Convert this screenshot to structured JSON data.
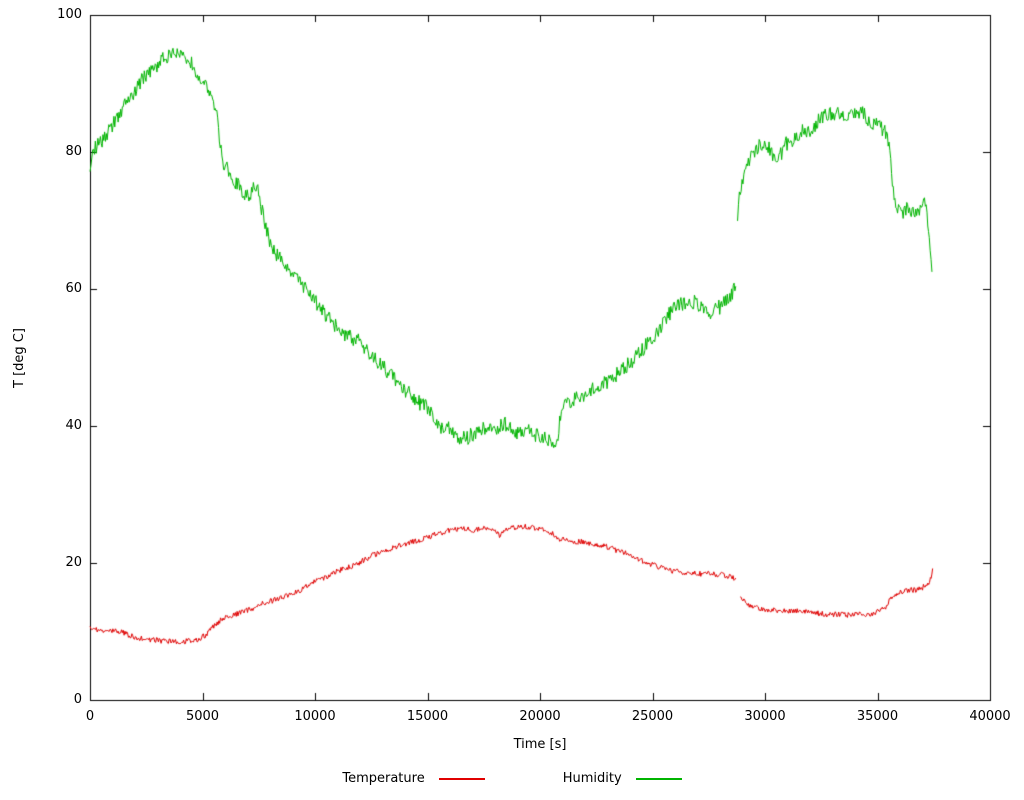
{
  "colors": {
    "background": "#ffffff",
    "axis": "#000000"
  },
  "chart_data": {
    "type": "line",
    "title": "",
    "xlabel": "Time [s]",
    "ylabel": "T [deg C]",
    "xlim": [
      0,
      40000
    ],
    "ylim": [
      0,
      100
    ],
    "xticks": [
      0,
      5000,
      10000,
      15000,
      20000,
      25000,
      30000,
      35000,
      40000
    ],
    "yticks": [
      0,
      20,
      40,
      60,
      80,
      100
    ],
    "grid": false,
    "legend_position": "bottom-center",
    "sample_step": 40,
    "series": [
      {
        "name": "Temperature",
        "color": "#e00000",
        "noise": 0.4,
        "segments": [
          [
            [
              0,
              10.5
            ],
            [
              400,
              10.2
            ],
            [
              900,
              10.1
            ],
            [
              1400,
              9.9
            ],
            [
              1900,
              9.3
            ],
            [
              2400,
              8.9
            ],
            [
              3000,
              8.7
            ],
            [
              3600,
              8.6
            ],
            [
              4200,
              8.6
            ],
            [
              4800,
              8.8
            ],
            [
              5200,
              9.6
            ],
            [
              5500,
              10.8
            ],
            [
              5800,
              11.6
            ],
            [
              6100,
              12.1
            ],
            [
              6500,
              12.6
            ],
            [
              7000,
              13.1
            ],
            [
              7400,
              13.5
            ],
            [
              7700,
              14.1
            ],
            [
              8100,
              14.5
            ],
            [
              8600,
              15.0
            ],
            [
              9100,
              15.6
            ],
            [
              9600,
              16.5
            ],
            [
              10000,
              17.3
            ],
            [
              10500,
              18.0
            ],
            [
              11000,
              18.8
            ],
            [
              11500,
              19.4
            ],
            [
              12000,
              20.1
            ],
            [
              12500,
              21.0
            ],
            [
              13000,
              21.8
            ],
            [
              13500,
              22.2
            ],
            [
              14000,
              22.8
            ],
            [
              14500,
              23.2
            ],
            [
              15000,
              23.8
            ],
            [
              15500,
              24.3
            ],
            [
              16000,
              24.8
            ],
            [
              16500,
              25.0
            ],
            [
              17000,
              24.8
            ],
            [
              17500,
              25.1
            ],
            [
              18000,
              25.0
            ],
            [
              18200,
              23.8
            ],
            [
              18500,
              25.0
            ],
            [
              19000,
              25.2
            ],
            [
              19500,
              25.3
            ],
            [
              20000,
              25.0
            ],
            [
              20400,
              24.6
            ],
            [
              20800,
              23.6
            ],
            [
              21300,
              23.2
            ],
            [
              21800,
              23.1
            ],
            [
              22300,
              22.9
            ],
            [
              22800,
              22.5
            ],
            [
              23300,
              22.0
            ],
            [
              23800,
              21.4
            ],
            [
              24300,
              20.7
            ],
            [
              24800,
              20.0
            ],
            [
              25300,
              19.4
            ],
            [
              25800,
              18.9
            ],
            [
              26300,
              18.6
            ],
            [
              26800,
              18.5
            ],
            [
              27300,
              18.4
            ],
            [
              27800,
              18.4
            ],
            [
              28300,
              18.1
            ],
            [
              28700,
              17.8
            ]
          ],
          [
            [
              28900,
              14.7
            ],
            [
              29300,
              13.9
            ],
            [
              29700,
              13.4
            ],
            [
              30200,
              13.2
            ],
            [
              30700,
              13.1
            ],
            [
              31200,
              13.0
            ],
            [
              31700,
              13.0
            ],
            [
              32200,
              12.7
            ],
            [
              32700,
              12.5
            ],
            [
              33200,
              12.5
            ],
            [
              33700,
              12.4
            ],
            [
              34200,
              12.5
            ],
            [
              34700,
              12.6
            ],
            [
              35100,
              12.9
            ],
            [
              35400,
              13.6
            ],
            [
              35600,
              15.0
            ],
            [
              35900,
              15.7
            ],
            [
              36300,
              16.0
            ],
            [
              36700,
              16.1
            ],
            [
              37000,
              16.4
            ],
            [
              37200,
              16.9
            ],
            [
              37350,
              17.6
            ],
            [
              37450,
              19.2
            ]
          ]
        ]
      },
      {
        "name": "Humidity",
        "color": "#00b400",
        "noise": 1.1,
        "segments": [
          [
            [
              0,
              78
            ],
            [
              200,
              80.5
            ],
            [
              500,
              81.5
            ],
            [
              800,
              83
            ],
            [
              1100,
              84.5
            ],
            [
              1400,
              86
            ],
            [
              1700,
              87.5
            ],
            [
              2000,
              89
            ],
            [
              2300,
              90.5
            ],
            [
              2600,
              91.5
            ],
            [
              2900,
              92.5
            ],
            [
              3200,
              93.5
            ],
            [
              3500,
              94.2
            ],
            [
              3800,
              94.5
            ],
            [
              4100,
              94.3
            ],
            [
              4400,
              93.5
            ],
            [
              4700,
              92
            ],
            [
              5000,
              90.5
            ],
            [
              5300,
              89
            ],
            [
              5600,
              86.5
            ],
            [
              5750,
              82
            ],
            [
              5900,
              78.5
            ],
            [
              6200,
              77
            ],
            [
              6500,
              75.5
            ],
            [
              6800,
              74
            ],
            [
              7100,
              73.5
            ],
            [
              7300,
              74.8
            ],
            [
              7500,
              74
            ],
            [
              7700,
              70.5
            ],
            [
              7900,
              68
            ],
            [
              8100,
              66
            ],
            [
              8400,
              64.5
            ],
            [
              8700,
              63.5
            ],
            [
              9000,
              62.5
            ],
            [
              9300,
              61
            ],
            [
              9600,
              60
            ],
            [
              9900,
              58.5
            ],
            [
              10200,
              57.5
            ],
            [
              10500,
              56
            ],
            [
              10800,
              55
            ],
            [
              11100,
              54
            ],
            [
              11400,
              53.2
            ],
            [
              11700,
              52.8
            ],
            [
              12000,
              52.2
            ],
            [
              12300,
              51
            ],
            [
              12600,
              50
            ],
            [
              12900,
              49
            ],
            [
              13200,
              48
            ],
            [
              13500,
              47
            ],
            [
              13800,
              46
            ],
            [
              14100,
              45
            ],
            [
              14400,
              44
            ],
            [
              14700,
              43.2
            ],
            [
              15000,
              42.8
            ],
            [
              15300,
              41.5
            ],
            [
              15600,
              39.8
            ],
            [
              15900,
              40.3
            ],
            [
              16200,
              38.8
            ],
            [
              16500,
              38
            ],
            [
              16800,
              38.4
            ],
            [
              17100,
              38.9
            ],
            [
              17400,
              39.4
            ],
            [
              17700,
              39.9
            ],
            [
              18000,
              39.4
            ],
            [
              18300,
              40.4
            ],
            [
              18600,
              40.1
            ],
            [
              18900,
              39.2
            ],
            [
              19200,
              38.6
            ],
            [
              19500,
              39.4
            ],
            [
              19800,
              38.6
            ],
            [
              20100,
              38.7
            ],
            [
              20400,
              37.8
            ],
            [
              20650,
              36.9
            ],
            [
              20800,
              38.5
            ],
            [
              20950,
              42.3
            ],
            [
              21300,
              43.4
            ],
            [
              21700,
              44.2
            ],
            [
              22100,
              44.9
            ],
            [
              22500,
              45.5
            ],
            [
              22900,
              46.2
            ],
            [
              23300,
              47.3
            ],
            [
              23700,
              48.2
            ],
            [
              24100,
              49.6
            ],
            [
              24500,
              51
            ],
            [
              24900,
              52.6
            ],
            [
              25300,
              54.2
            ],
            [
              25700,
              56.2
            ],
            [
              26000,
              57.4
            ],
            [
              26300,
              57.9
            ],
            [
              26600,
              58.4
            ],
            [
              26900,
              58
            ],
            [
              27200,
              57.4
            ],
            [
              27500,
              56.6
            ],
            [
              27800,
              57
            ],
            [
              28100,
              57.6
            ],
            [
              28400,
              58.6
            ],
            [
              28700,
              60.4
            ]
          ],
          [
            [
              28780,
              71
            ],
            [
              28900,
              74.5
            ],
            [
              29100,
              76.5
            ],
            [
              29300,
              78.5
            ],
            [
              29500,
              80
            ],
            [
              29700,
              80.8
            ],
            [
              29900,
              81.3
            ],
            [
              30100,
              81.2
            ],
            [
              30300,
              80
            ],
            [
              30500,
              79
            ],
            [
              30700,
              79.6
            ],
            [
              30900,
              81
            ],
            [
              31100,
              81.8
            ],
            [
              31400,
              82
            ],
            [
              31700,
              83.2
            ],
            [
              32000,
              83
            ],
            [
              32300,
              84.2
            ],
            [
              32600,
              85.4
            ],
            [
              32900,
              85.6
            ],
            [
              33200,
              85.7
            ],
            [
              33500,
              85.1
            ],
            [
              33800,
              85.5
            ],
            [
              34100,
              86
            ],
            [
              34300,
              85.9
            ],
            [
              34500,
              84.9
            ],
            [
              34800,
              84.2
            ],
            [
              35100,
              83.5
            ],
            [
              35400,
              82.8
            ],
            [
              35550,
              80
            ],
            [
              35700,
              74.5
            ],
            [
              35850,
              71.8
            ],
            [
              36100,
              71.2
            ],
            [
              36300,
              72
            ],
            [
              36500,
              71.4
            ],
            [
              36700,
              70.6
            ],
            [
              36900,
              71.2
            ],
            [
              37050,
              72.8
            ],
            [
              37200,
              71
            ],
            [
              37300,
              68
            ],
            [
              37420,
              62.5
            ]
          ]
        ]
      }
    ]
  }
}
